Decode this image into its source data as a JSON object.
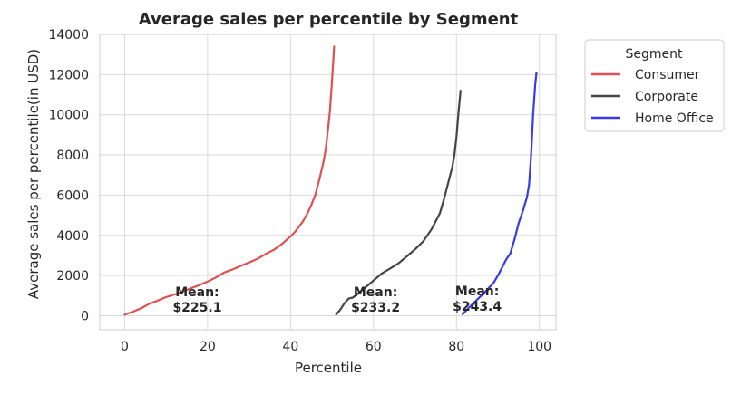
{
  "chart_data": {
    "type": "line",
    "title": "Average sales per percentile by Segment",
    "xlabel": "Percentile",
    "ylabel": "Average sales per percentile(in USD)",
    "xlim": [
      -6,
      104
    ],
    "ylim": [
      -700,
      14000
    ],
    "xticks": [
      0,
      20,
      40,
      60,
      80,
      100
    ],
    "yticks": [
      0,
      2000,
      4000,
      6000,
      8000,
      10000,
      12000,
      14000
    ],
    "grid": true,
    "legend": {
      "title": "Segment",
      "placement": "outside-top-right"
    },
    "series": [
      {
        "name": "Consumer",
        "color": "#e05050",
        "x": [
          0,
          2,
          4,
          6,
          8,
          10,
          12,
          14,
          16,
          18,
          20,
          22,
          24,
          26,
          28,
          30,
          32,
          34,
          36,
          38,
          40,
          41,
          42,
          43,
          44,
          45,
          46,
          47,
          48,
          48.5,
          49,
          49.5,
          50,
          50.5
        ],
        "y": [
          50,
          200,
          370,
          600,
          750,
          930,
          1060,
          1200,
          1370,
          1520,
          1700,
          1900,
          2150,
          2300,
          2480,
          2650,
          2830,
          3070,
          3280,
          3580,
          3950,
          4150,
          4420,
          4700,
          5060,
          5500,
          6030,
          6830,
          7700,
          8300,
          9200,
          10200,
          11700,
          13400
        ]
      },
      {
        "name": "Corporate",
        "color": "#444444",
        "x": [
          51,
          52,
          53,
          54,
          55,
          56,
          58,
          60,
          62,
          64,
          66,
          68,
          70,
          72,
          73,
          74,
          75,
          76,
          77,
          78,
          79,
          79.5,
          80,
          80.5,
          81
        ],
        "y": [
          60,
          300,
          620,
          850,
          900,
          1050,
          1400,
          1750,
          2100,
          2350,
          2600,
          2950,
          3300,
          3700,
          4000,
          4300,
          4700,
          5100,
          5800,
          6600,
          7400,
          8000,
          8900,
          10100,
          11200
        ]
      },
      {
        "name": "Home Office",
        "color": "#3a3ae6",
        "x": [
          81.5,
          83,
          85,
          87,
          89,
          90,
          91,
          92,
          93,
          94,
          95,
          96,
          97,
          97.5,
          98,
          98.5,
          99,
          99.3
        ],
        "y": [
          70,
          400,
          800,
          1200,
          1650,
          2000,
          2400,
          2800,
          3100,
          3800,
          4600,
          5200,
          5900,
          6500,
          8000,
          10000,
          11500,
          12100
        ]
      }
    ],
    "annotations": [
      {
        "label": "Mean:",
        "value": "$225.1",
        "x": 17.5,
        "y": 600
      },
      {
        "label": "Mean:",
        "value": "$233.2",
        "x": 60.5,
        "y": 600
      },
      {
        "label": "Mean:",
        "value": "$243.4",
        "x": 85,
        "y": 650
      }
    ]
  }
}
